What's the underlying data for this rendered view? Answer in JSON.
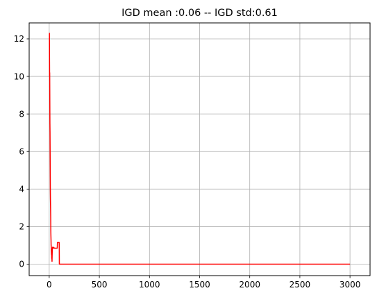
{
  "chart_data": {
    "type": "line",
    "title": "IGD mean :0.06 -- IGD std:0.61",
    "xlabel": "",
    "ylabel": "",
    "xlim": [
      -200,
      3200
    ],
    "ylim": [
      -0.61,
      12.85
    ],
    "grid": true,
    "x_ticks": [
      0,
      500,
      1000,
      1500,
      2000,
      2500,
      3000
    ],
    "x_tick_labels": [
      "0",
      "500",
      "1000",
      "1500",
      "2000",
      "2500",
      "3000"
    ],
    "y_ticks": [
      0,
      2,
      4,
      6,
      8,
      10,
      12
    ],
    "y_tick_labels": [
      "0",
      "2",
      "4",
      "6",
      "8",
      "10",
      "12"
    ],
    "series": [
      {
        "name": "IGD",
        "color": "#ff0000",
        "x": [
          0,
          2,
          4,
          5,
          7,
          8,
          9,
          10,
          11,
          12,
          13,
          14,
          15,
          16,
          17,
          18,
          19,
          20,
          21,
          22,
          23,
          24,
          25,
          26,
          28,
          30,
          32,
          35,
          40,
          45,
          50,
          55,
          60,
          65,
          70,
          75,
          80,
          82,
          85,
          90,
          95,
          98,
          100,
          101,
          105,
          110,
          200,
          500,
          1000,
          1500,
          2000,
          2500,
          3000
        ],
        "values": [
          12.3,
          12.3,
          10.0,
          10.2,
          7.5,
          7.0,
          6.0,
          5.0,
          4.0,
          3.5,
          3.2,
          2.9,
          2.5,
          1.8,
          1.5,
          1.3,
          1.0,
          0.9,
          0.7,
          0.6,
          0.5,
          0.6,
          0.3,
          0.4,
          0.15,
          0.6,
          0.9,
          0.85,
          0.85,
          0.9,
          0.85,
          0.85,
          0.85,
          0.85,
          0.85,
          0.85,
          0.85,
          1.15,
          1.15,
          1.15,
          1.15,
          1.15,
          1.15,
          0.0,
          0.0,
          0.0,
          0.0,
          0.0,
          0.0,
          0.0,
          0.0,
          0.0,
          0.0
        ]
      }
    ]
  }
}
